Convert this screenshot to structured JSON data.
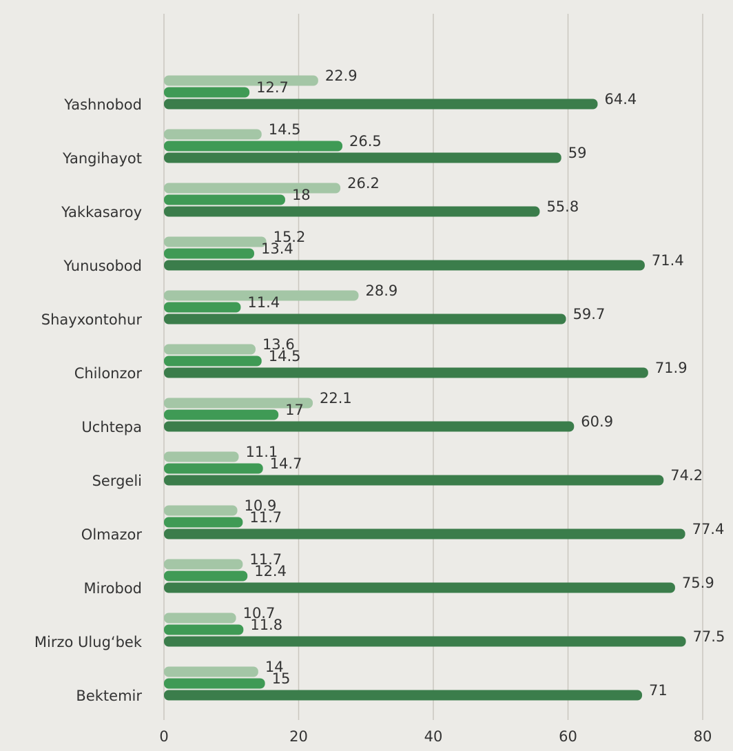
{
  "chart_data": {
    "type": "barh",
    "categories": [
      "Yashnobod",
      "Yangihayot",
      "Yakkasaroy",
      "Yunusobod",
      "Shayxontohur",
      "Chilonzor",
      "Uchtepa",
      "Sergeli",
      "Olmazor",
      "Mirobod",
      "Mirzo Ulug‘bek",
      "Bektemir"
    ],
    "series": [
      {
        "color": "#a4c6a6",
        "values": [
          22.9,
          14.5,
          26.2,
          15.2,
          28.9,
          13.6,
          22.1,
          11.1,
          10.9,
          11.7,
          10.7,
          14
        ]
      },
      {
        "color": "#3f9a55",
        "values": [
          12.7,
          26.5,
          18,
          13.4,
          11.4,
          14.5,
          17,
          14.7,
          11.7,
          12.4,
          11.8,
          15
        ]
      },
      {
        "color": "#3b7d4b",
        "values": [
          64.4,
          59,
          55.8,
          71.4,
          59.7,
          71.9,
          60.9,
          74.2,
          77.4,
          75.9,
          77.5,
          71
        ]
      }
    ],
    "xlim": [
      0,
      80
    ],
    "xticks": [
      0,
      20,
      40,
      60,
      80
    ],
    "grid": true
  }
}
